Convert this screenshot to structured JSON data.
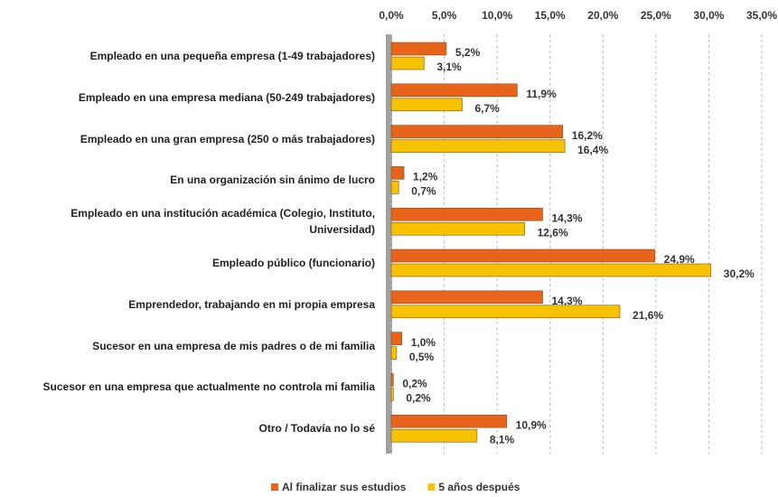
{
  "chart_data": {
    "type": "bar",
    "orientation": "horizontal",
    "categories": [
      "Empleado en una pequeña empresa (1-49 trabajadores)",
      "Empleado en una empresa mediana (50-249 trabajadores)",
      "Empleado en una gran empresa (250 o más trabajadores)",
      "En una organización sin ánimo de lucro",
      "Empleado en una institución académica (Colegio, Instituto, Universidad)",
      "Empleado público (funcionario)",
      "Emprendedor, trabajando en mi propia empresa",
      "Sucesor en una empresa de mis padres o de mi familia",
      "Sucesor en una empresa que actualmente no controla mi familia",
      "Otro / Todavía no lo sé"
    ],
    "series": [
      {
        "name": "Al finalizar sus estudios",
        "color": "#e8641b",
        "values": [
          5.2,
          11.9,
          16.2,
          1.2,
          14.3,
          24.9,
          14.3,
          1.0,
          0.2,
          10.9
        ],
        "value_labels": [
          "5,2%",
          "11,9%",
          "16,2%",
          "1,2%",
          "14,3%",
          "24,9%",
          "14,3%",
          "1,0%",
          "0,2%",
          "10,9%"
        ]
      },
      {
        "name": "5 años después",
        "color": "#f7c300",
        "values": [
          3.1,
          6.7,
          16.4,
          0.7,
          12.6,
          30.2,
          21.6,
          0.5,
          0.2,
          8.1
        ],
        "value_labels": [
          "3,1%",
          "6,7%",
          "16,4%",
          "0,7%",
          "12,6%",
          "30,2%",
          "21,6%",
          "0,5%",
          "0,2%",
          "8,1%"
        ]
      }
    ],
    "xlim": [
      0,
      35
    ],
    "xticks": [
      {
        "value": 0,
        "label": "0,0%"
      },
      {
        "value": 5,
        "label": "5,0%"
      },
      {
        "value": 10,
        "label": "10,0%"
      },
      {
        "value": 15,
        "label": "15,0%"
      },
      {
        "value": 20,
        "label": "20,0%"
      },
      {
        "value": 25,
        "label": "25,0%"
      },
      {
        "value": 30,
        "label": "30,0%"
      },
      {
        "value": 35,
        "label": "35,0%"
      }
    ],
    "grid": true,
    "legend": "bottom"
  }
}
